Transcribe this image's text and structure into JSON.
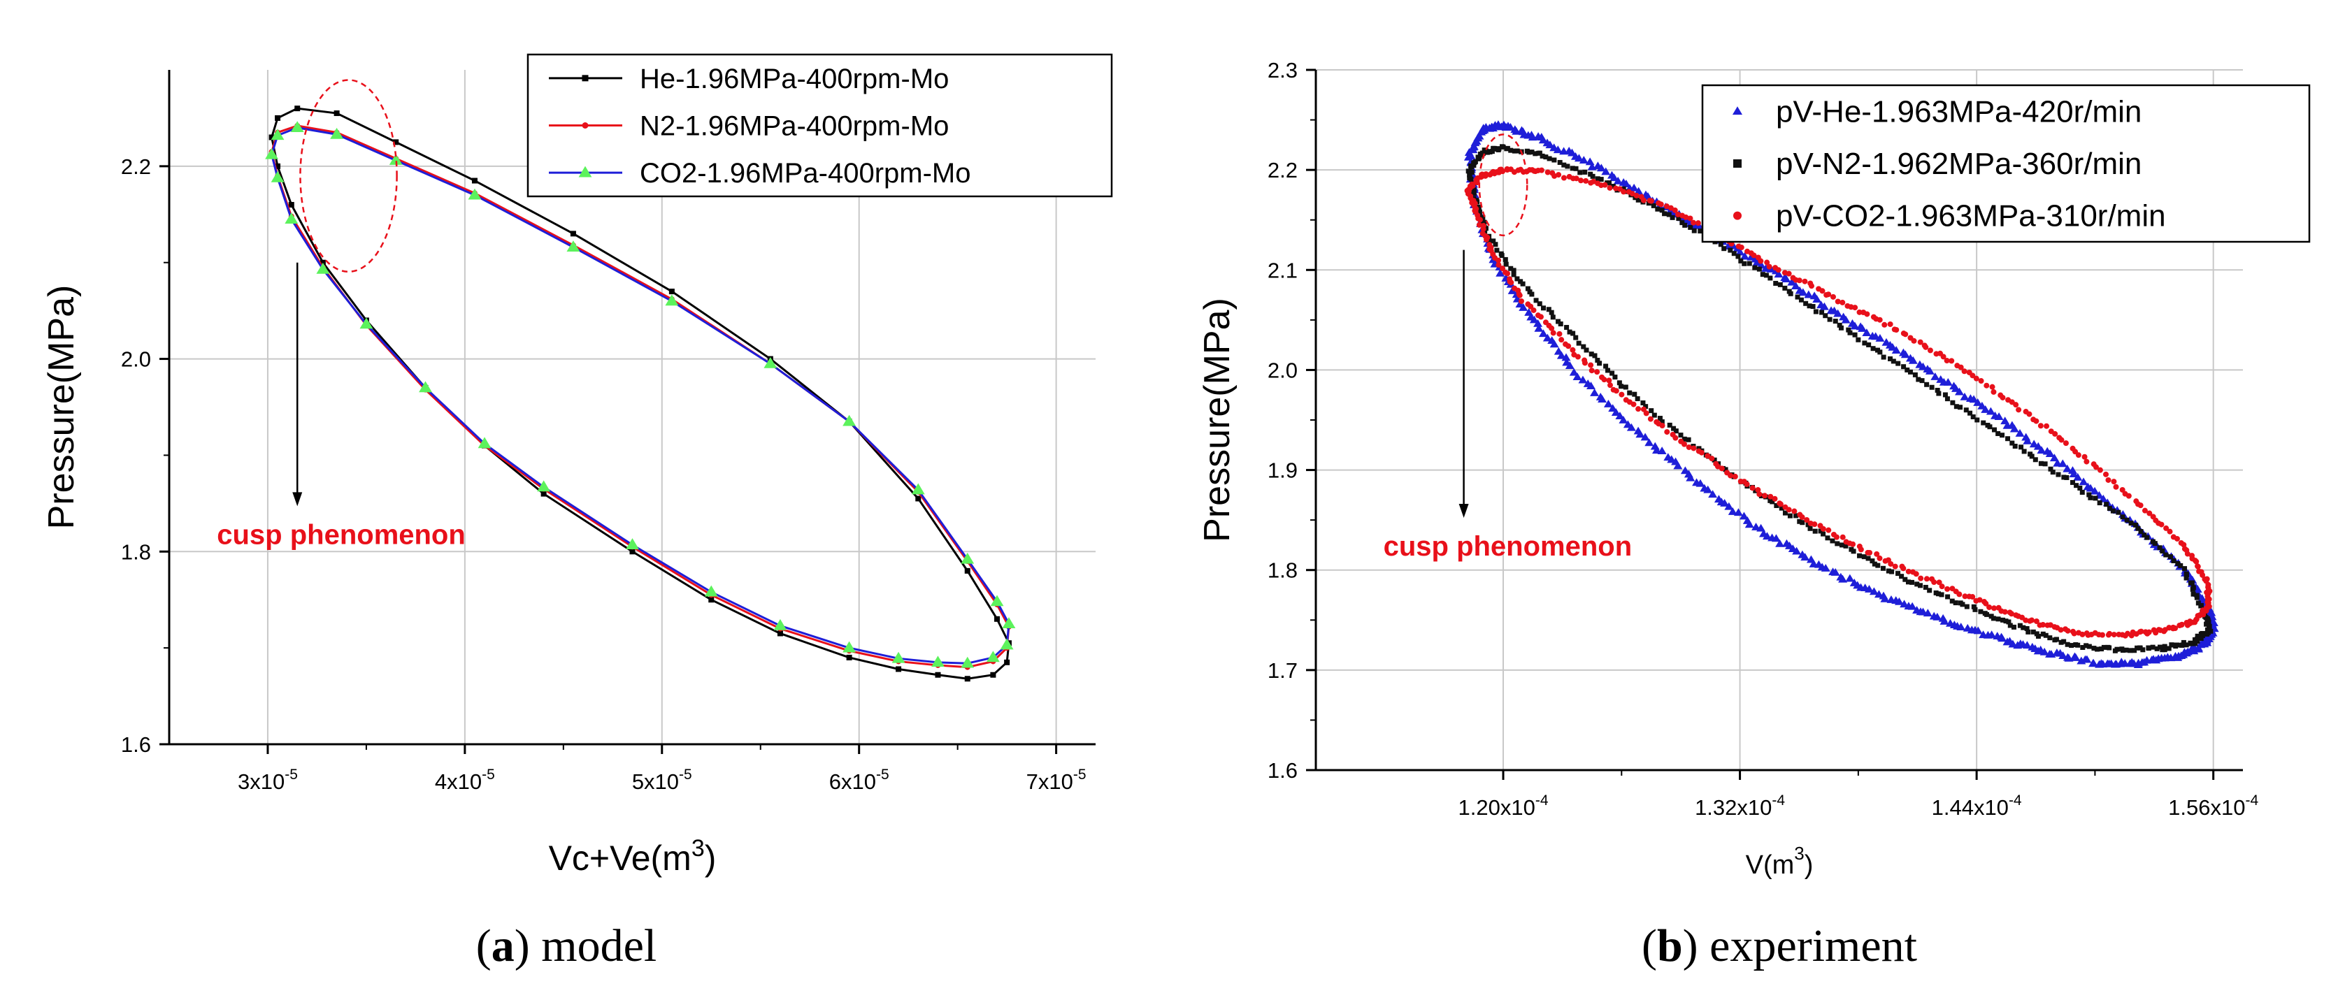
{
  "chart_data": [
    {
      "panel": "a",
      "type": "line",
      "caption_letter": "a",
      "caption_text": "model",
      "xlabel": "Vc+Ve(m",
      "xlabel_sup": "3",
      "xlabel_close": ")",
      "ylabel": "Pressure(MPa)",
      "xlim": [
        2.5,
        7.2
      ],
      "ylim": [
        1.6,
        2.3
      ],
      "x_unit_scale": "x10^-5",
      "xticks": [
        {
          "value": 3,
          "label": "3x10",
          "exp": "-5"
        },
        {
          "value": 4,
          "label": "4x10",
          "exp": "-5"
        },
        {
          "value": 5,
          "label": "5x10",
          "exp": "-5"
        },
        {
          "value": 6,
          "label": "6x10",
          "exp": "-5"
        },
        {
          "value": 7,
          "label": "7x10",
          "exp": "-5"
        }
      ],
      "yticks": [
        {
          "value": 1.6,
          "label": "1.6"
        },
        {
          "value": 1.8,
          "label": "1.8"
        },
        {
          "value": 2.0,
          "label": "2.0"
        },
        {
          "value": 2.2,
          "label": "2.2"
        }
      ],
      "grid": true,
      "legend_position": "top-right",
      "annotation": {
        "text": "cusp phenomenon",
        "circle_center": [
          3.41,
          2.19
        ],
        "circle_radius_x": 0.98,
        "circle_radius_y": 0.0995,
        "arrow_from": [
          3.15,
          2.1
        ],
        "arrow_to": [
          3.15,
          1.85
        ]
      },
      "series": [
        {
          "name": "He-1.96MPa-400rpm-Mo",
          "color": "#000000",
          "marker": "square",
          "x": [
            3.02,
            3.05,
            3.15,
            3.35,
            3.65,
            4.05,
            4.55,
            5.05,
            5.55,
            5.95,
            6.3,
            6.55,
            6.7,
            6.76,
            6.75,
            6.68,
            6.55,
            6.4,
            6.2,
            5.95,
            5.6,
            5.25,
            4.85,
            4.4,
            4.1,
            3.8,
            3.5,
            3.28,
            3.12,
            3.05,
            3.02
          ],
          "y": [
            2.23,
            2.25,
            2.26,
            2.255,
            2.225,
            2.185,
            2.13,
            2.07,
            2.0,
            1.935,
            1.855,
            1.78,
            1.73,
            1.705,
            1.685,
            1.672,
            1.668,
            1.672,
            1.678,
            1.69,
            1.715,
            1.75,
            1.8,
            1.86,
            1.91,
            1.97,
            2.04,
            2.1,
            2.16,
            2.2,
            2.23
          ]
        },
        {
          "name": "N2-1.96MPa-400rpm-Mo",
          "color": "#e8101a",
          "marker": "dot",
          "x": [
            3.02,
            3.05,
            3.15,
            3.35,
            3.65,
            4.05,
            4.55,
            5.05,
            5.55,
            5.95,
            6.3,
            6.55,
            6.7,
            6.76,
            6.75,
            6.68,
            6.55,
            6.4,
            6.2,
            5.95,
            5.6,
            5.25,
            4.85,
            4.4,
            4.1,
            3.8,
            3.5,
            3.28,
            3.12,
            3.05,
            3.02
          ],
          "y": [
            2.215,
            2.235,
            2.242,
            2.235,
            2.208,
            2.172,
            2.118,
            2.062,
            1.995,
            1.935,
            1.862,
            1.79,
            1.745,
            1.722,
            1.7,
            1.686,
            1.68,
            1.682,
            1.686,
            1.697,
            1.72,
            1.755,
            1.805,
            1.865,
            1.91,
            1.968,
            2.035,
            2.095,
            2.148,
            2.19,
            2.215
          ]
        },
        {
          "name": "CO2-1.96MPa-400rpm-Mo",
          "color": "#1e1ed8",
          "marker": "triangle",
          "marker_color": "#5cf25c",
          "x": [
            3.02,
            3.05,
            3.15,
            3.35,
            3.65,
            4.05,
            4.55,
            5.05,
            5.55,
            5.95,
            6.3,
            6.55,
            6.7,
            6.76,
            6.75,
            6.68,
            6.55,
            6.4,
            6.2,
            5.95,
            5.6,
            5.25,
            4.85,
            4.4,
            4.1,
            3.8,
            3.5,
            3.28,
            3.12,
            3.05,
            3.02
          ],
          "y": [
            2.212,
            2.232,
            2.24,
            2.233,
            2.206,
            2.17,
            2.116,
            2.06,
            1.995,
            1.935,
            1.864,
            1.792,
            1.748,
            1.725,
            1.703,
            1.69,
            1.684,
            1.685,
            1.689,
            1.7,
            1.723,
            1.758,
            1.807,
            1.867,
            1.912,
            1.97,
            2.036,
            2.093,
            2.145,
            2.188,
            2.212
          ]
        }
      ]
    },
    {
      "panel": "b",
      "type": "scatter",
      "caption_letter": "b",
      "caption_text": "experiment",
      "xlabel": "V(m",
      "xlabel_sup": "3",
      "xlabel_close": ")",
      "ylabel": "Pressure(MPa)",
      "xlim": [
        1.105,
        1.575
      ],
      "ylim": [
        1.6,
        2.3
      ],
      "x_unit_scale": "x10^-4",
      "xticks": [
        {
          "value": 1.2,
          "label": "1.20x10",
          "exp": "-4"
        },
        {
          "value": 1.32,
          "label": "1.32x10",
          "exp": "-4"
        },
        {
          "value": 1.44,
          "label": "1.44x10",
          "exp": "-4"
        },
        {
          "value": 1.56,
          "label": "1.56x10",
          "exp": "-4"
        }
      ],
      "yticks": [
        {
          "value": 1.6,
          "label": "1.6"
        },
        {
          "value": 1.7,
          "label": "1.7"
        },
        {
          "value": 1.8,
          "label": "1.8"
        },
        {
          "value": 1.9,
          "label": "1.9"
        },
        {
          "value": 2.0,
          "label": "2.0"
        },
        {
          "value": 2.1,
          "label": "2.1"
        },
        {
          "value": 2.2,
          "label": "2.2"
        },
        {
          "value": 2.3,
          "label": "2.3"
        }
      ],
      "grid": true,
      "legend_position": "top-right",
      "annotation": {
        "text": "cusp phenomenon",
        "circle_center": [
          1.2,
          2.185
        ],
        "circle_radius_x": 0.0485,
        "circle_radius_y": 0.0505,
        "arrow_from": [
          1.18,
          2.12
        ],
        "arrow_to": [
          1.18,
          1.855
        ]
      },
      "series": [
        {
          "name": "pV-He-1.963MPa-420r/min",
          "color": "#1e1ed8",
          "marker": "triangle",
          "x": [
            1.183,
            1.19,
            1.2,
            1.22,
            1.25,
            1.28,
            1.31,
            1.34,
            1.37,
            1.4,
            1.43,
            1.46,
            1.49,
            1.52,
            1.545,
            1.558,
            1.56,
            1.555,
            1.54,
            1.52,
            1.5,
            1.475,
            1.45,
            1.42,
            1.39,
            1.36,
            1.33,
            1.3,
            1.27,
            1.24,
            1.215,
            1.195,
            1.185,
            1.183
          ],
          "y": [
            2.215,
            2.24,
            2.245,
            2.23,
            2.2,
            2.165,
            2.13,
            2.095,
            2.055,
            2.02,
            1.98,
            1.94,
            1.895,
            1.845,
            1.8,
            1.76,
            1.74,
            1.725,
            1.712,
            1.706,
            1.707,
            1.718,
            1.732,
            1.752,
            1.775,
            1.805,
            1.84,
            1.885,
            1.935,
            1.99,
            2.05,
            2.11,
            2.17,
            2.215
          ]
        },
        {
          "name": "pV-N2-1.962MPa-360r/min",
          "color": "#111111",
          "marker": "square",
          "x": [
            1.183,
            1.19,
            1.2,
            1.22,
            1.25,
            1.28,
            1.31,
            1.34,
            1.37,
            1.4,
            1.43,
            1.46,
            1.49,
            1.52,
            1.545,
            1.555,
            1.558,
            1.55,
            1.535,
            1.515,
            1.49,
            1.465,
            1.44,
            1.41,
            1.38,
            1.35,
            1.32,
            1.29,
            1.26,
            1.235,
            1.21,
            1.192,
            1.185,
            1.183
          ],
          "y": [
            2.2,
            2.218,
            2.222,
            2.215,
            2.19,
            2.16,
            2.125,
            2.085,
            2.045,
            2.005,
            1.965,
            1.925,
            1.885,
            1.845,
            1.8,
            1.76,
            1.74,
            1.728,
            1.722,
            1.72,
            1.724,
            1.74,
            1.76,
            1.785,
            1.815,
            1.85,
            1.89,
            1.935,
            1.985,
            2.035,
            2.085,
            2.135,
            2.175,
            2.2
          ]
        },
        {
          "name": "pV-CO2-1.963MPa-310r/min",
          "color": "#e8101a",
          "marker": "dot",
          "x": [
            1.182,
            1.19,
            1.2,
            1.22,
            1.25,
            1.28,
            1.31,
            1.34,
            1.37,
            1.4,
            1.43,
            1.46,
            1.49,
            1.52,
            1.545,
            1.557,
            1.558,
            1.55,
            1.535,
            1.515,
            1.49,
            1.465,
            1.44,
            1.41,
            1.38,
            1.35,
            1.32,
            1.29,
            1.26,
            1.235,
            1.21,
            1.195,
            1.187,
            1.182
          ],
          "y": [
            2.18,
            2.195,
            2.2,
            2.198,
            2.185,
            2.165,
            2.135,
            2.1,
            2.07,
            2.04,
            2.005,
            1.965,
            1.92,
            1.87,
            1.825,
            1.79,
            1.765,
            1.748,
            1.74,
            1.735,
            1.737,
            1.75,
            1.77,
            1.795,
            1.822,
            1.855,
            1.89,
            1.93,
            1.975,
            2.02,
            2.07,
            2.115,
            2.155,
            2.18
          ]
        }
      ]
    }
  ]
}
